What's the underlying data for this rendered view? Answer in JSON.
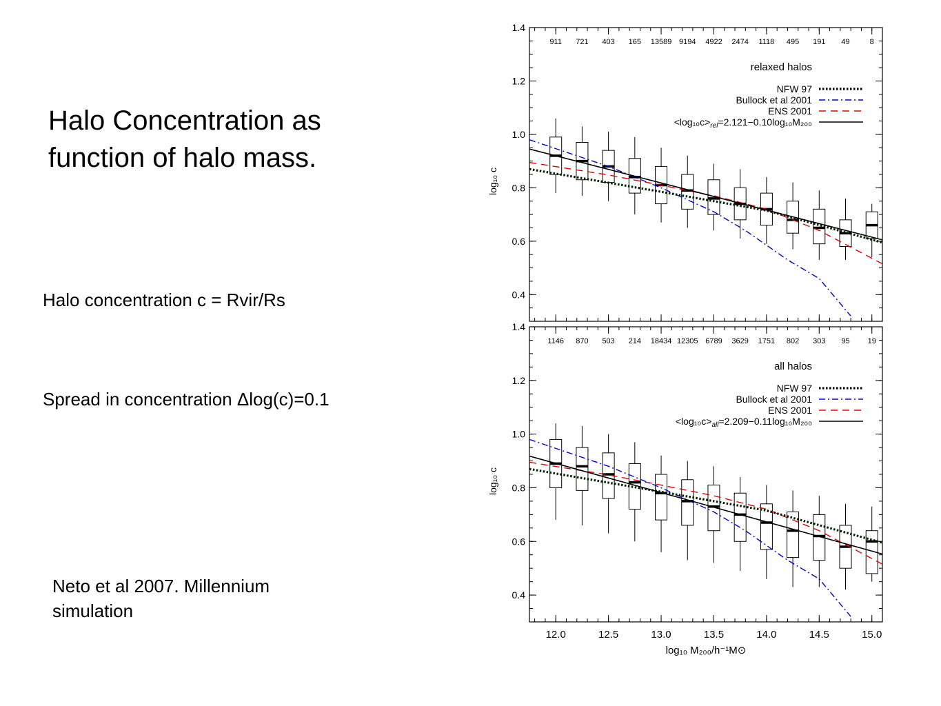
{
  "slide": {
    "title_lines": [
      "Halo Concentration as",
      "function of halo mass."
    ],
    "definition": "Halo concentration  c = Rvir/Rs",
    "spread": "Spread in concentration Δlog(c)=0.1",
    "citation_lines": [
      "Neto et al 2007. Millennium",
      "simulation"
    ]
  },
  "chart_data": [
    {
      "type": "box",
      "panel_label": "relaxed halos",
      "xlabel": "log₁₀ M₂₀₀/h⁻¹M⊙",
      "ylabel": "log₁₀ c",
      "xlim": [
        11.75,
        15.1
      ],
      "ylim": [
        0.3,
        1.4
      ],
      "x_ticks": [
        "12.0",
        "12.5",
        "13.0",
        "13.5",
        "14.0",
        "14.5",
        "15.0"
      ],
      "y_ticks": [
        "0.4",
        "0.6",
        "0.8",
        "1.0",
        "1.2",
        "1.4"
      ],
      "counts": [
        "911",
        "721",
        "403",
        "165",
        "13589",
        "9194",
        "4922",
        "2474",
        "1118",
        "495",
        "191",
        "49",
        "8"
      ],
      "x_bins": [
        12.0,
        12.25,
        12.5,
        12.75,
        13.0,
        13.25,
        13.5,
        13.75,
        14.0,
        14.25,
        14.5,
        14.75,
        15.0
      ],
      "boxes": [
        {
          "median": 0.92,
          "q1": 0.85,
          "q3": 0.99,
          "lo": 0.78,
          "hi": 1.06
        },
        {
          "median": 0.9,
          "q1": 0.83,
          "q3": 0.97,
          "lo": 0.77,
          "hi": 1.03
        },
        {
          "median": 0.88,
          "q1": 0.82,
          "q3": 0.94,
          "lo": 0.75,
          "hi": 1.01
        },
        {
          "median": 0.84,
          "q1": 0.78,
          "q3": 0.91,
          "lo": 0.7,
          "hi": 0.99
        },
        {
          "median": 0.81,
          "q1": 0.74,
          "q3": 0.88,
          "lo": 0.67,
          "hi": 0.95
        },
        {
          "median": 0.79,
          "q1": 0.72,
          "q3": 0.85,
          "lo": 0.65,
          "hi": 0.92
        },
        {
          "median": 0.76,
          "q1": 0.7,
          "q3": 0.83,
          "lo": 0.64,
          "hi": 0.89
        },
        {
          "median": 0.74,
          "q1": 0.68,
          "q3": 0.8,
          "lo": 0.61,
          "hi": 0.87
        },
        {
          "median": 0.72,
          "q1": 0.66,
          "q3": 0.78,
          "lo": 0.59,
          "hi": 0.84
        },
        {
          "median": 0.68,
          "q1": 0.63,
          "q3": 0.75,
          "lo": 0.57,
          "hi": 0.82
        },
        {
          "median": 0.65,
          "q1": 0.59,
          "q3": 0.72,
          "lo": 0.53,
          "hi": 0.79
        },
        {
          "median": 0.63,
          "q1": 0.58,
          "q3": 0.68,
          "lo": 0.53,
          "hi": 0.76
        },
        {
          "median": 0.66,
          "q1": 0.61,
          "q3": 0.71,
          "lo": 0.54,
          "hi": 0.74
        }
      ],
      "legend": [
        {
          "label": "NFW 97",
          "color": "#000000",
          "style": "dotted"
        },
        {
          "label": "Bullock et al 2001",
          "color": "#0000cc",
          "style": "dashdot"
        },
        {
          "label": "ENS 2001",
          "color": "#dd0000",
          "style": "dashed"
        },
        {
          "label_prefix": "<log₁₀c>",
          "label_sub": "rel",
          "label_fit": "=2.121−0.10log₁₀M₂₀₀",
          "color": "#000000",
          "style": "solid"
        }
      ],
      "lines": {
        "nfw": {
          "x": [
            11.75,
            13.0,
            14.0,
            15.1
          ],
          "y": [
            0.87,
            0.785,
            0.715,
            0.595
          ]
        },
        "bullock": {
          "x": [
            11.75,
            12.5,
            13.0,
            13.5,
            13.8,
            14.2,
            14.5,
            14.8
          ],
          "y": [
            0.98,
            0.88,
            0.8,
            0.71,
            0.64,
            0.53,
            0.46,
            0.32
          ]
        },
        "ens": {
          "x": [
            11.75,
            12.5,
            13.0,
            13.5,
            14.0,
            14.5,
            15.1
          ],
          "y": [
            0.895,
            0.848,
            0.81,
            0.77,
            0.72,
            0.64,
            0.515
          ]
        },
        "fit": {
          "x": [
            11.75,
            15.1
          ],
          "y": [
            0.945,
            0.605
          ]
        }
      }
    },
    {
      "type": "box",
      "panel_label": "all halos",
      "xlabel": "log₁₀ M₂₀₀/h⁻¹M⊙",
      "ylabel": "log₁₀ c",
      "xlim": [
        11.75,
        15.1
      ],
      "ylim": [
        0.3,
        1.4
      ],
      "x_ticks": [
        "12.0",
        "12.5",
        "13.0",
        "13.5",
        "14.0",
        "14.5",
        "15.0"
      ],
      "y_ticks": [
        "0.4",
        "0.6",
        "0.8",
        "1.0",
        "1.2",
        "1.4"
      ],
      "counts": [
        "1146",
        "870",
        "503",
        "214",
        "18434",
        "12305",
        "6789",
        "3629",
        "1751",
        "802",
        "303",
        "95",
        "19"
      ],
      "x_bins": [
        12.0,
        12.25,
        12.5,
        12.75,
        13.0,
        13.25,
        13.5,
        13.75,
        14.0,
        14.25,
        14.5,
        14.75,
        15.0
      ],
      "boxes": [
        {
          "median": 0.89,
          "q1": 0.8,
          "q3": 0.98,
          "lo": 0.68,
          "hi": 1.04
        },
        {
          "median": 0.88,
          "q1": 0.79,
          "q3": 0.95,
          "lo": 0.66,
          "hi": 1.03
        },
        {
          "median": 0.85,
          "q1": 0.76,
          "q3": 0.93,
          "lo": 0.63,
          "hi": 1.0
        },
        {
          "median": 0.82,
          "q1": 0.72,
          "q3": 0.89,
          "lo": 0.6,
          "hi": 0.97
        },
        {
          "median": 0.78,
          "q1": 0.68,
          "q3": 0.85,
          "lo": 0.56,
          "hi": 0.92
        },
        {
          "median": 0.75,
          "q1": 0.66,
          "q3": 0.83,
          "lo": 0.53,
          "hi": 0.9
        },
        {
          "median": 0.73,
          "q1": 0.64,
          "q3": 0.81,
          "lo": 0.52,
          "hi": 0.88
        },
        {
          "median": 0.7,
          "q1": 0.6,
          "q3": 0.78,
          "lo": 0.49,
          "hi": 0.84
        },
        {
          "median": 0.67,
          "q1": 0.57,
          "q3": 0.74,
          "lo": 0.46,
          "hi": 0.81
        },
        {
          "median": 0.64,
          "q1": 0.54,
          "q3": 0.71,
          "lo": 0.43,
          "hi": 0.79
        },
        {
          "median": 0.62,
          "q1": 0.53,
          "q3": 0.7,
          "lo": 0.43,
          "hi": 0.77
        },
        {
          "median": 0.58,
          "q1": 0.5,
          "q3": 0.66,
          "lo": 0.42,
          "hi": 0.74
        },
        {
          "median": 0.6,
          "q1": 0.48,
          "q3": 0.64,
          "lo": 0.45,
          "hi": 0.73
        }
      ],
      "legend": [
        {
          "label": "NFW 97",
          "color": "#000000",
          "style": "dotted"
        },
        {
          "label": "Bullock et al 2001",
          "color": "#0000cc",
          "style": "dashdot"
        },
        {
          "label": "ENS 2001",
          "color": "#dd0000",
          "style": "dashed"
        },
        {
          "label_prefix": "<log₁₀c>",
          "label_sub": "all",
          "label_fit": "=2.209−0.11log₁₀M₂₀₀",
          "color": "#000000",
          "style": "solid"
        }
      ],
      "lines": {
        "nfw": {
          "x": [
            11.75,
            13.0,
            14.0,
            15.1
          ],
          "y": [
            0.87,
            0.785,
            0.715,
            0.595
          ]
        },
        "bullock": {
          "x": [
            11.75,
            12.5,
            13.0,
            13.5,
            13.8,
            14.2,
            14.5,
            14.8
          ],
          "y": [
            0.98,
            0.88,
            0.8,
            0.71,
            0.64,
            0.53,
            0.46,
            0.32
          ]
        },
        "ens": {
          "x": [
            11.75,
            12.5,
            13.0,
            13.5,
            14.0,
            14.5,
            15.1
          ],
          "y": [
            0.895,
            0.848,
            0.81,
            0.77,
            0.72,
            0.64,
            0.515
          ]
        },
        "fit": {
          "x": [
            11.75,
            15.1
          ],
          "y": [
            0.918,
            0.553
          ]
        }
      }
    }
  ]
}
